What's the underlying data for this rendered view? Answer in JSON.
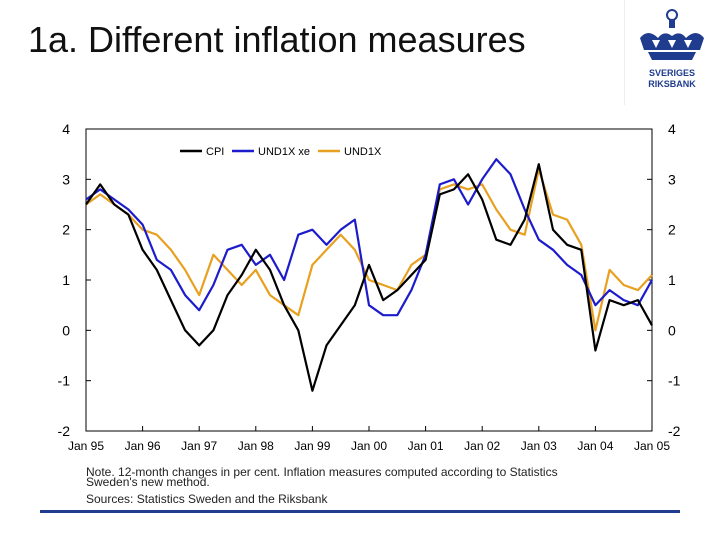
{
  "slide": {
    "title": "1a. Different inflation measures",
    "logo_text_1": "SVERIGES",
    "logo_text_2": "RIKSBANK",
    "note_line1": "Note. 12-month changes in per cent. Inflation measures computed according to Statistics",
    "note_line2": "Sweden's new method.",
    "sources": "Sources: Statistics Sweden and the Riksbank"
  },
  "colors": {
    "cpi": "#000000",
    "und1x_xe": "#1c1ccc",
    "und1x": "#e8a020",
    "logo": "#1f3c8f"
  },
  "chart_data": {
    "type": "line",
    "ylim": [
      -2,
      4
    ],
    "yticks": [
      "-2",
      "-1",
      "0",
      "1",
      "2",
      "3",
      "4"
    ],
    "xlim": [
      1995.0,
      2005.0
    ],
    "xticks": [
      "Jan 95",
      "Jan 96",
      "Jan 97",
      "Jan 98",
      "Jan 99",
      "Jan 00",
      "Jan 01",
      "Jan 02",
      "Jan 03",
      "Jan 04",
      "Jan 05"
    ],
    "legend_position": "top-center",
    "grid": false,
    "series": [
      {
        "name": "CPI",
        "color": "#000000",
        "points": [
          [
            1995.0,
            2.5
          ],
          [
            1995.25,
            2.9
          ],
          [
            1995.5,
            2.5
          ],
          [
            1995.75,
            2.3
          ],
          [
            1996.0,
            1.6
          ],
          [
            1996.25,
            1.2
          ],
          [
            1996.5,
            0.6
          ],
          [
            1996.75,
            0.0
          ],
          [
            1997.0,
            -0.3
          ],
          [
            1997.25,
            0.0
          ],
          [
            1997.5,
            0.7
          ],
          [
            1997.75,
            1.1
          ],
          [
            1998.0,
            1.6
          ],
          [
            1998.25,
            1.2
          ],
          [
            1998.5,
            0.5
          ],
          [
            1998.75,
            0.0
          ],
          [
            1999.0,
            -1.2
          ],
          [
            1999.25,
            -0.3
          ],
          [
            1999.5,
            0.1
          ],
          [
            1999.75,
            0.5
          ],
          [
            2000.0,
            1.3
          ],
          [
            2000.25,
            0.6
          ],
          [
            2000.5,
            0.8
          ],
          [
            2000.75,
            1.1
          ],
          [
            2001.0,
            1.4
          ],
          [
            2001.25,
            2.7
          ],
          [
            2001.5,
            2.8
          ],
          [
            2001.75,
            3.1
          ],
          [
            2002.0,
            2.6
          ],
          [
            2002.25,
            1.8
          ],
          [
            2002.5,
            1.7
          ],
          [
            2002.75,
            2.2
          ],
          [
            2003.0,
            3.3
          ],
          [
            2003.25,
            2.0
          ],
          [
            2003.5,
            1.7
          ],
          [
            2003.75,
            1.6
          ],
          [
            2004.0,
            -0.4
          ],
          [
            2004.25,
            0.6
          ],
          [
            2004.5,
            0.5
          ],
          [
            2004.75,
            0.6
          ],
          [
            2005.0,
            0.1
          ]
        ]
      },
      {
        "name": "UND1X xe",
        "color": "#1c1ccc",
        "points": [
          [
            1995.0,
            2.6
          ],
          [
            1995.25,
            2.8
          ],
          [
            1995.5,
            2.6
          ],
          [
            1995.75,
            2.4
          ],
          [
            1996.0,
            2.1
          ],
          [
            1996.25,
            1.4
          ],
          [
            1996.5,
            1.2
          ],
          [
            1996.75,
            0.7
          ],
          [
            1997.0,
            0.4
          ],
          [
            1997.25,
            0.9
          ],
          [
            1997.5,
            1.6
          ],
          [
            1997.75,
            1.7
          ],
          [
            1998.0,
            1.3
          ],
          [
            1998.25,
            1.5
          ],
          [
            1998.5,
            1.0
          ],
          [
            1998.75,
            1.9
          ],
          [
            1999.0,
            2.0
          ],
          [
            1999.25,
            1.7
          ],
          [
            1999.5,
            2.0
          ],
          [
            1999.75,
            2.2
          ],
          [
            2000.0,
            0.5
          ],
          [
            2000.25,
            0.3
          ],
          [
            2000.5,
            0.3
          ],
          [
            2000.75,
            0.8
          ],
          [
            2001.0,
            1.5
          ],
          [
            2001.25,
            2.9
          ],
          [
            2001.5,
            3.0
          ],
          [
            2001.75,
            2.5
          ],
          [
            2002.0,
            3.0
          ],
          [
            2002.25,
            3.4
          ],
          [
            2002.5,
            3.1
          ],
          [
            2002.75,
            2.4
          ],
          [
            2003.0,
            1.8
          ],
          [
            2003.25,
            1.6
          ],
          [
            2003.5,
            1.3
          ],
          [
            2003.75,
            1.1
          ],
          [
            2004.0,
            0.5
          ],
          [
            2004.25,
            0.8
          ],
          [
            2004.5,
            0.6
          ],
          [
            2004.75,
            0.5
          ],
          [
            2005.0,
            1.0
          ]
        ]
      },
      {
        "name": "UND1X",
        "color": "#e8a020",
        "points": [
          [
            1995.0,
            2.5
          ],
          [
            1995.25,
            2.7
          ],
          [
            1995.5,
            2.5
          ],
          [
            1995.75,
            2.3
          ],
          [
            1996.0,
            2.0
          ],
          [
            1996.25,
            1.9
          ],
          [
            1996.5,
            1.6
          ],
          [
            1996.75,
            1.2
          ],
          [
            1997.0,
            0.7
          ],
          [
            1997.25,
            1.5
          ],
          [
            1997.5,
            1.2
          ],
          [
            1997.75,
            0.9
          ],
          [
            1998.0,
            1.2
          ],
          [
            1998.25,
            0.7
          ],
          [
            1998.5,
            0.5
          ],
          [
            1998.75,
            0.3
          ],
          [
            1999.0,
            1.3
          ],
          [
            1999.25,
            1.6
          ],
          [
            1999.5,
            1.9
          ],
          [
            1999.75,
            1.6
          ],
          [
            2000.0,
            1.0
          ],
          [
            2000.25,
            0.9
          ],
          [
            2000.5,
            0.8
          ],
          [
            2000.75,
            1.3
          ],
          [
            2001.0,
            1.5
          ],
          [
            2001.25,
            2.8
          ],
          [
            2001.5,
            2.9
          ],
          [
            2001.75,
            2.8
          ],
          [
            2002.0,
            2.9
          ],
          [
            2002.25,
            2.4
          ],
          [
            2002.5,
            2.0
          ],
          [
            2002.75,
            1.9
          ],
          [
            2003.0,
            3.2
          ],
          [
            2003.25,
            2.3
          ],
          [
            2003.5,
            2.2
          ],
          [
            2003.75,
            1.7
          ],
          [
            2004.0,
            0.0
          ],
          [
            2004.25,
            1.2
          ],
          [
            2004.5,
            0.9
          ],
          [
            2004.75,
            0.8
          ],
          [
            2005.0,
            1.1
          ]
        ]
      }
    ]
  }
}
